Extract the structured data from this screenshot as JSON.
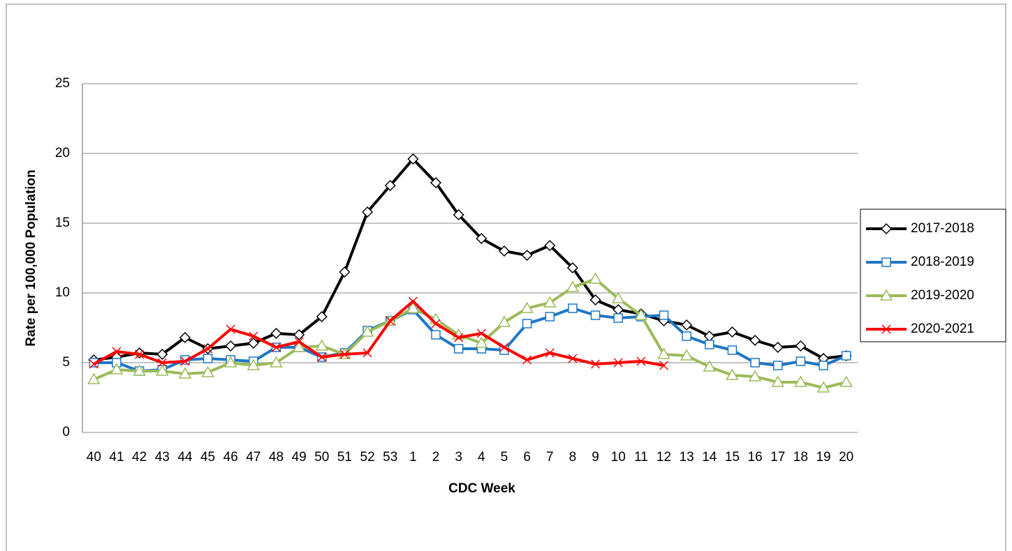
{
  "chart_data": {
    "type": "line",
    "x_label": "CDC Week",
    "y_label": "Rate per 100,000 Population",
    "categories": [
      "40",
      "41",
      "42",
      "43",
      "44",
      "45",
      "46",
      "47",
      "48",
      "49",
      "50",
      "51",
      "52",
      "53",
      "1",
      "2",
      "3",
      "4",
      "5",
      "6",
      "7",
      "8",
      "9",
      "10",
      "11",
      "12",
      "13",
      "14",
      "15",
      "16",
      "17",
      "18",
      "19",
      "20"
    ],
    "series": [
      {
        "name": "2017-2018",
        "color": "#000000",
        "marker": "diamond",
        "values": [
          5.2,
          5.4,
          5.7,
          5.6,
          6.8,
          6.0,
          6.2,
          6.4,
          7.1,
          7.0,
          8.3,
          11.5,
          15.8,
          17.7,
          19.6,
          17.9,
          15.6,
          13.9,
          13.0,
          12.7,
          13.4,
          11.8,
          9.5,
          8.8,
          8.5,
          8.0,
          7.7,
          6.9,
          7.2,
          6.6,
          6.1,
          6.2,
          5.3,
          5.5
        ]
      },
      {
        "name": "2018-2019",
        "color": "#1f77c4",
        "marker": "square",
        "values": [
          5.0,
          5.0,
          4.4,
          4.5,
          5.2,
          5.3,
          5.2,
          5.1,
          6.1,
          6.1,
          5.4,
          5.7,
          7.3,
          8.0,
          8.8,
          7.0,
          6.0,
          6.0,
          5.9,
          7.8,
          8.3,
          8.9,
          8.4,
          8.2,
          8.3,
          8.4,
          6.9,
          6.3,
          5.9,
          5.0,
          4.8,
          5.1,
          4.8,
          5.5
        ]
      },
      {
        "name": "2019-2020",
        "color": "#9bbb59",
        "marker": "triangle",
        "values": [
          3.8,
          4.5,
          4.4,
          4.4,
          4.2,
          4.3,
          5.0,
          4.8,
          5.0,
          6.1,
          6.2,
          5.6,
          7.2,
          8.0,
          8.9,
          8.1,
          7.0,
          6.4,
          7.9,
          8.9,
          9.3,
          10.4,
          11.0,
          9.6,
          8.4,
          5.6,
          5.5,
          4.7,
          4.1,
          4.0,
          3.6,
          3.6,
          3.2,
          3.6
        ]
      },
      {
        "name": "2020-2021",
        "color": "#ff0000",
        "marker": "x",
        "values": [
          4.9,
          5.8,
          5.6,
          5.0,
          5.1,
          6.0,
          7.4,
          6.9,
          6.1,
          6.5,
          5.4,
          5.6,
          5.7,
          8.0,
          9.4,
          7.8,
          6.8,
          7.1,
          6.1,
          5.2,
          5.7,
          5.3,
          4.9,
          5.0,
          5.1,
          4.8,
          null,
          null,
          null,
          null,
          null,
          null,
          null,
          null
        ]
      }
    ],
    "ylim": [
      0,
      25
    ],
    "yticks": [
      0,
      5,
      10,
      15,
      20,
      25
    ],
    "grid": true,
    "legend": "right"
  }
}
